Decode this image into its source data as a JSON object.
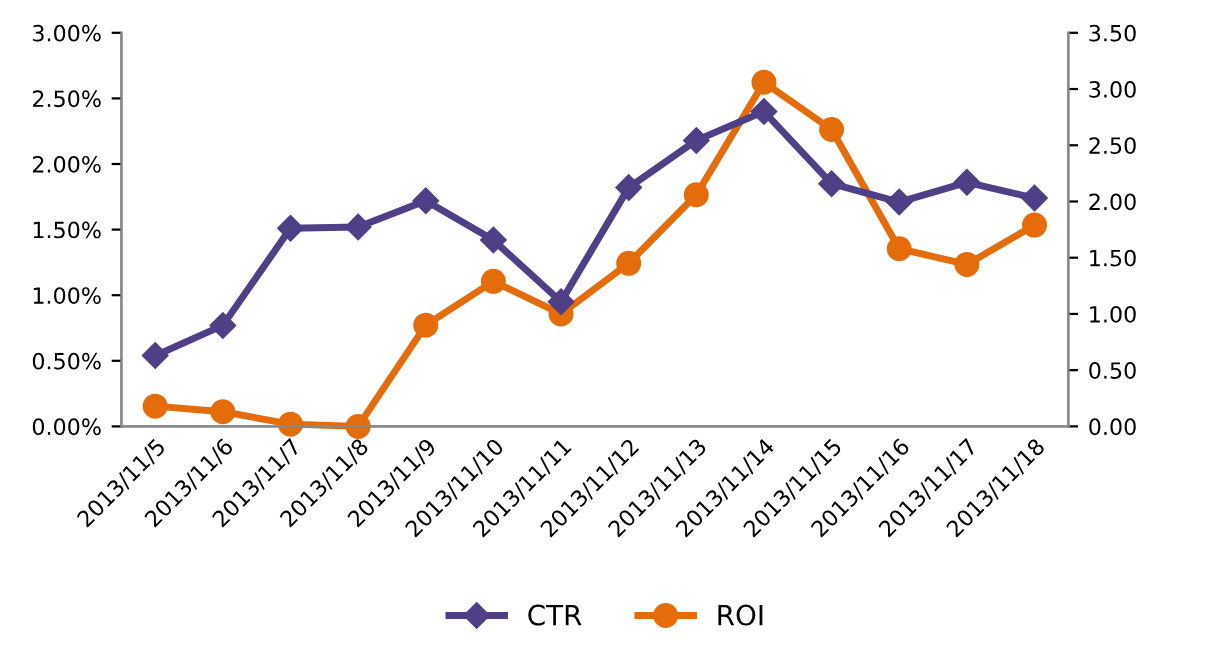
{
  "chart_data": {
    "type": "line",
    "categories": [
      "2013/11/5",
      "2013/11/6",
      "2013/11/7",
      "2013/11/8",
      "2013/11/9",
      "2013/11/10",
      "2013/11/11",
      "2013/11/12",
      "2013/11/13",
      "2013/11/14",
      "2013/11/15",
      "2013/11/16",
      "2013/11/17",
      "2013/11/18"
    ],
    "series": [
      {
        "name": "CTR",
        "color": "#4f3f86",
        "marker": "diamond",
        "values": [
          0.54,
          0.77,
          1.51,
          1.52,
          1.72,
          1.42,
          0.95,
          1.82,
          2.18,
          2.4,
          1.85,
          1.71,
          1.86,
          1.74
        ]
      },
      {
        "name": "ROI",
        "color": "#e46c0a",
        "marker": "circle",
        "axis": "y2",
        "values": [
          0.18,
          0.13,
          0.02,
          0.0,
          0.9,
          1.29,
          1.0,
          1.45,
          2.06,
          3.06,
          2.64,
          1.58,
          1.44,
          1.79
        ]
      }
    ],
    "ylim": [
      0,
      3
    ],
    "yticks": [
      {
        "value": 0,
        "label": "0.00%"
      },
      {
        "value": 0.5,
        "label": "0.50%"
      },
      {
        "value": 1,
        "label": "1.00%"
      },
      {
        "value": 1.5,
        "label": "1.50%"
      },
      {
        "value": 2,
        "label": "2.00%"
      },
      {
        "value": 2.5,
        "label": "2.50%"
      },
      {
        "value": 3,
        "label": "3.00%"
      }
    ],
    "y2lim": [
      0,
      3.5
    ],
    "y2ticks": [
      {
        "value": 0,
        "label": "0.00"
      },
      {
        "value": 0.5,
        "label": "0.50"
      },
      {
        "value": 1,
        "label": "1.00"
      },
      {
        "value": 1.5,
        "label": "1.50"
      },
      {
        "value": 2,
        "label": "2.00"
      },
      {
        "value": 2.5,
        "label": "2.50"
      },
      {
        "value": 3,
        "label": "3.00"
      },
      {
        "value": 3.5,
        "label": "3.50"
      }
    ],
    "grid": false,
    "legend": "bottom",
    "line_style": "solid"
  }
}
